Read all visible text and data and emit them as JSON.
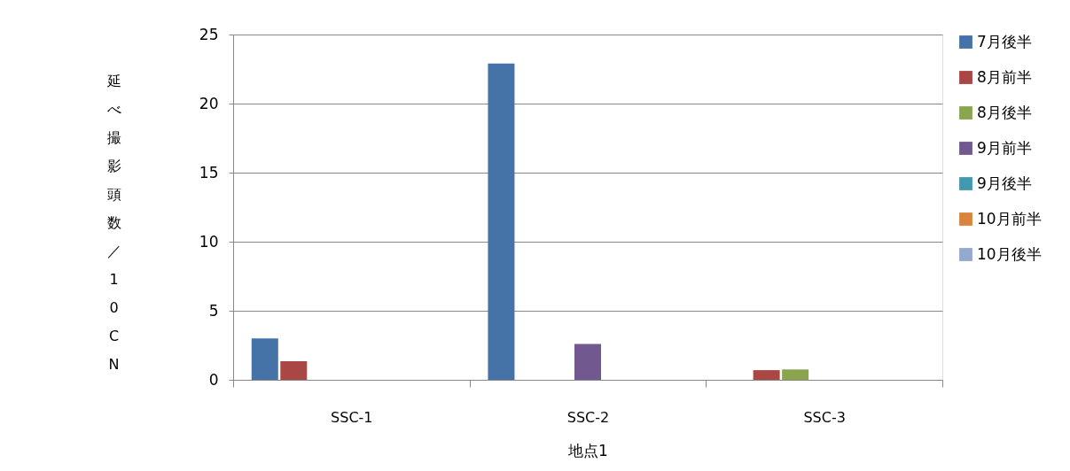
{
  "chart_data": {
    "type": "bar",
    "xlabel": "地点1",
    "ylabel": "延べ撮影頭数／10CN",
    "categories": [
      "SSC-1",
      "SSC-2",
      "SSC-3"
    ],
    "series": [
      {
        "name": "7月後半",
        "color": "#4572a7",
        "values": [
          3.0,
          22.9,
          0
        ]
      },
      {
        "name": "8月前半",
        "color": "#aa4643",
        "values": [
          1.35,
          0,
          0.7
        ]
      },
      {
        "name": "8月後半",
        "color": "#89a54e",
        "values": [
          0,
          0,
          0.75
        ]
      },
      {
        "name": "9月前半",
        "color": "#71588f",
        "values": [
          0,
          2.6,
          0
        ]
      },
      {
        "name": "9月後半",
        "color": "#4198af",
        "values": [
          0,
          0,
          0
        ]
      },
      {
        "name": "10月前半",
        "color": "#db843d",
        "values": [
          0,
          0,
          0
        ]
      },
      {
        "name": "10月後半",
        "color": "#93a9cf",
        "values": [
          0,
          0,
          0
        ]
      }
    ],
    "ylim": [
      0,
      25
    ],
    "yticks": [
      0,
      5,
      10,
      15,
      20,
      25
    ],
    "grid": "y",
    "legend": "right"
  }
}
